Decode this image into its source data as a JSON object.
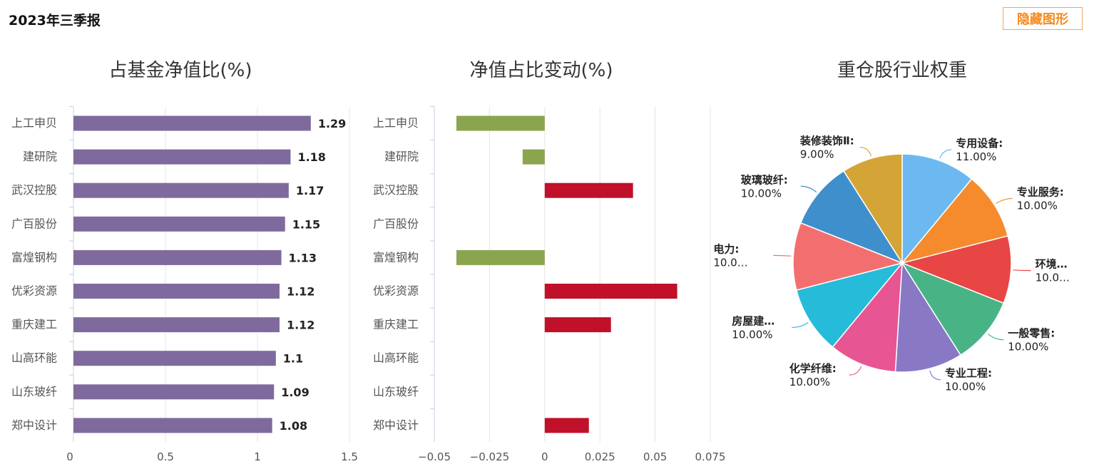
{
  "report_title": "2023年三季报",
  "hide_button": "隐藏图形",
  "chart_data": [
    {
      "type": "bar",
      "title": "占基金净值比(%)",
      "categories": [
        "上工申贝",
        "建研院",
        "武汉控股",
        "广百股份",
        "富煌钢构",
        "优彩资源",
        "重庆建工",
        "山高环能",
        "山东玻纤",
        "郑中设计"
      ],
      "values": [
        1.29,
        1.18,
        1.17,
        1.15,
        1.13,
        1.12,
        1.12,
        1.1,
        1.09,
        1.08
      ],
      "value_labels": [
        "1.29",
        "1.18",
        "1.17",
        "1.15",
        "1.13",
        "1.12",
        "1.12",
        "1.1",
        "1.09",
        "1.08"
      ],
      "xlim": [
        0,
        1.5
      ],
      "x_ticks": [
        "0",
        "0.5",
        "1",
        "1.5"
      ],
      "grid": true,
      "color": "#7f6a9e"
    },
    {
      "type": "bar",
      "title": "净值占比变动(%)",
      "categories": [
        "上工申贝",
        "建研院",
        "武汉控股",
        "广百股份",
        "富煌钢构",
        "优彩资源",
        "重庆建工",
        "山高环能",
        "山东玻纤",
        "郑中设计"
      ],
      "values": [
        -0.04,
        -0.01,
        0.04,
        0,
        -0.04,
        0.06,
        0.03,
        null,
        null,
        0.02
      ],
      "xlim": [
        -0.05,
        0.075
      ],
      "x_ticks": [
        "−0.05",
        "−0.025",
        "0",
        "0.025",
        "0.05",
        "0.075"
      ],
      "grid": true,
      "negative_color": "#8ba54e",
      "positive_color": "#c0102a"
    },
    {
      "type": "pie",
      "title": "重仓股行业权重",
      "slices": [
        {
          "label": "专用设备:",
          "value": 11,
          "value_label": "11.00%",
          "color": "#6bb9f0"
        },
        {
          "label": "专业服务:",
          "value": 10,
          "value_label": "10.00%",
          "color": "#f68b2d"
        },
        {
          "label": "环境…",
          "value": 10,
          "value_label": "10.0…",
          "color": "#e84545"
        },
        {
          "label": "一般零售:",
          "value": 10,
          "value_label": "10.00%",
          "color": "#48b485"
        },
        {
          "label": "专业工程:",
          "value": 10,
          "value_label": "10.00%",
          "color": "#8978c4"
        },
        {
          "label": "化学纤维:",
          "value": 10,
          "value_label": "10.00%",
          "color": "#e85593"
        },
        {
          "label": "房屋建…",
          "value": 10,
          "value_label": "10.00%",
          "color": "#25bbd9"
        },
        {
          "label": "电力:",
          "value": 10,
          "value_label": "10.0…",
          "color": "#f36f6f"
        },
        {
          "label": "玻璃玻纤:",
          "value": 10,
          "value_label": "10.00%",
          "color": "#3f8fcc"
        },
        {
          "label": "装修装饰Ⅱ:",
          "value": 9,
          "value_label": "9.00%",
          "color": "#d4a536"
        }
      ]
    }
  ]
}
